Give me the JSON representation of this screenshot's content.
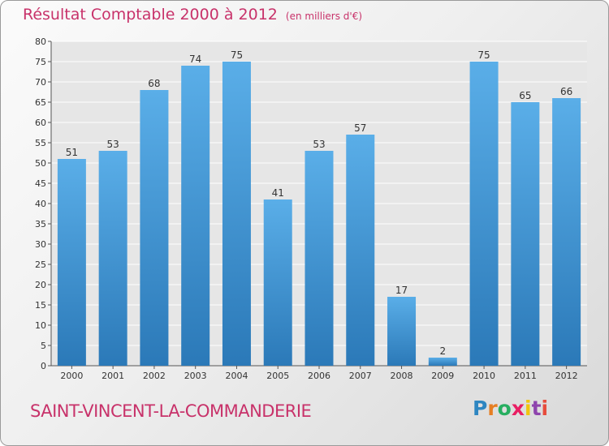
{
  "chart_data": {
    "type": "bar",
    "title": "Résultat Comptable 2000 à 2012",
    "subtitle": "(en milliers d'€)",
    "categories": [
      "2000",
      "2001",
      "2002",
      "2003",
      "2004",
      "2005",
      "2006",
      "2007",
      "2008",
      "2009",
      "2010",
      "2011",
      "2012"
    ],
    "values": [
      51,
      53,
      68,
      74,
      75,
      41,
      53,
      57,
      17,
      2,
      75,
      65,
      66
    ],
    "ylim": [
      0,
      80
    ],
    "yticks": [
      0,
      5,
      10,
      15,
      20,
      25,
      30,
      35,
      40,
      45,
      50,
      55,
      60,
      65,
      70,
      75,
      80
    ],
    "grid": true,
    "bar_color_top": "#5aaee8",
    "bar_color_bottom": "#2b79b8"
  },
  "commune": "SAINT-VINCENT-LA-COMMANDERIE",
  "logo": {
    "letters": [
      "P",
      "r",
      "o",
      "x",
      "i",
      "t",
      "i"
    ],
    "colors": [
      "#2e86c1",
      "#e67e22",
      "#27ae60",
      "#e91e63",
      "#f1c40f",
      "#8e44ad",
      "#e74c3c"
    ]
  },
  "colors": {
    "title": "#c8326a"
  }
}
